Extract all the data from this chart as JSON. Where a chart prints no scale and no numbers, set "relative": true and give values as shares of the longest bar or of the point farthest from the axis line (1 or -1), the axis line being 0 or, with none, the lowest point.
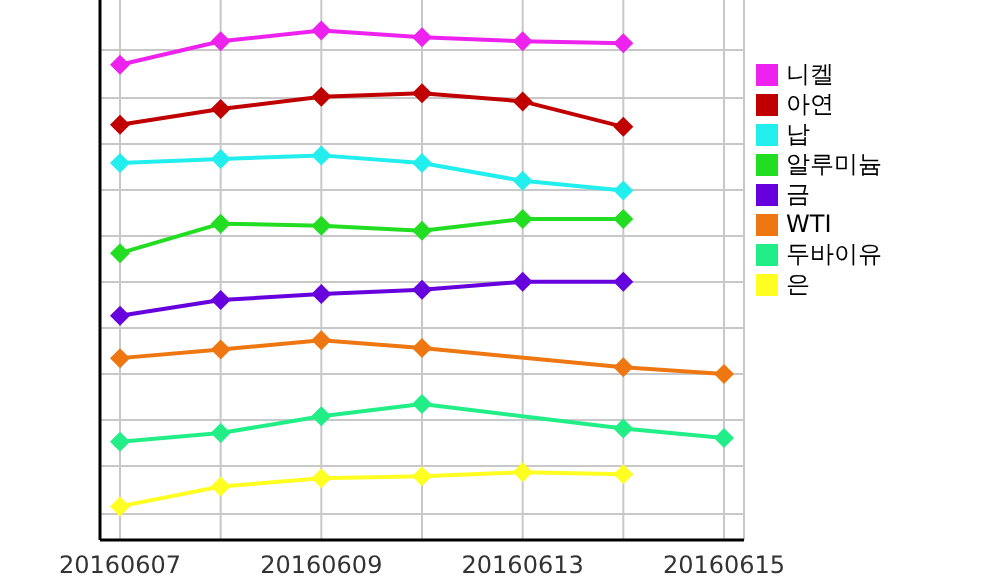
{
  "chart_data": {
    "type": "line",
    "relative": true,
    "categories": [
      "20160607",
      null,
      "20160609",
      null,
      "20160613",
      null,
      "20160615"
    ],
    "series": [
      {
        "name": "니켈",
        "color": "#ee22ee",
        "values": [
          0.933,
          0.979,
          1,
          0.987,
          0.979,
          0.975,
          null
        ]
      },
      {
        "name": "아연",
        "color": "#c00000",
        "values": [
          0.815,
          0.846,
          0.87,
          0.877,
          0.861,
          0.811,
          null
        ]
      },
      {
        "name": "납",
        "color": "#22eeee",
        "values": [
          0.74,
          0.748,
          0.755,
          0.74,
          0.705,
          0.686,
          null
        ]
      },
      {
        "name": "알루미늄",
        "color": "#22dd22",
        "values": [
          0.563,
          0.621,
          0.617,
          0.607,
          0.63,
          0.63,
          null
        ]
      },
      {
        "name": "금",
        "color": "#6600dd",
        "values": [
          0.44,
          0.471,
          0.483,
          0.491,
          0.507,
          0.507,
          null
        ]
      },
      {
        "name": "WTI",
        "color": "#ee7711",
        "values": [
          0.357,
          0.374,
          0.392,
          0.377,
          null,
          0.339,
          0.326
        ]
      },
      {
        "name": "두바이유",
        "color": "#22ee88",
        "values": [
          0.193,
          0.21,
          0.243,
          0.267,
          null,
          0.219,
          0.2
        ]
      },
      {
        "name": "은",
        "color": "#ffff22",
        "values": [
          0.066,
          0.105,
          0.121,
          0.125,
          0.133,
          0.129,
          null
        ]
      }
    ],
    "grid": true,
    "legend": "right",
    "marker": "diamond",
    "line_style": "solid",
    "tick_labels": "x"
  }
}
